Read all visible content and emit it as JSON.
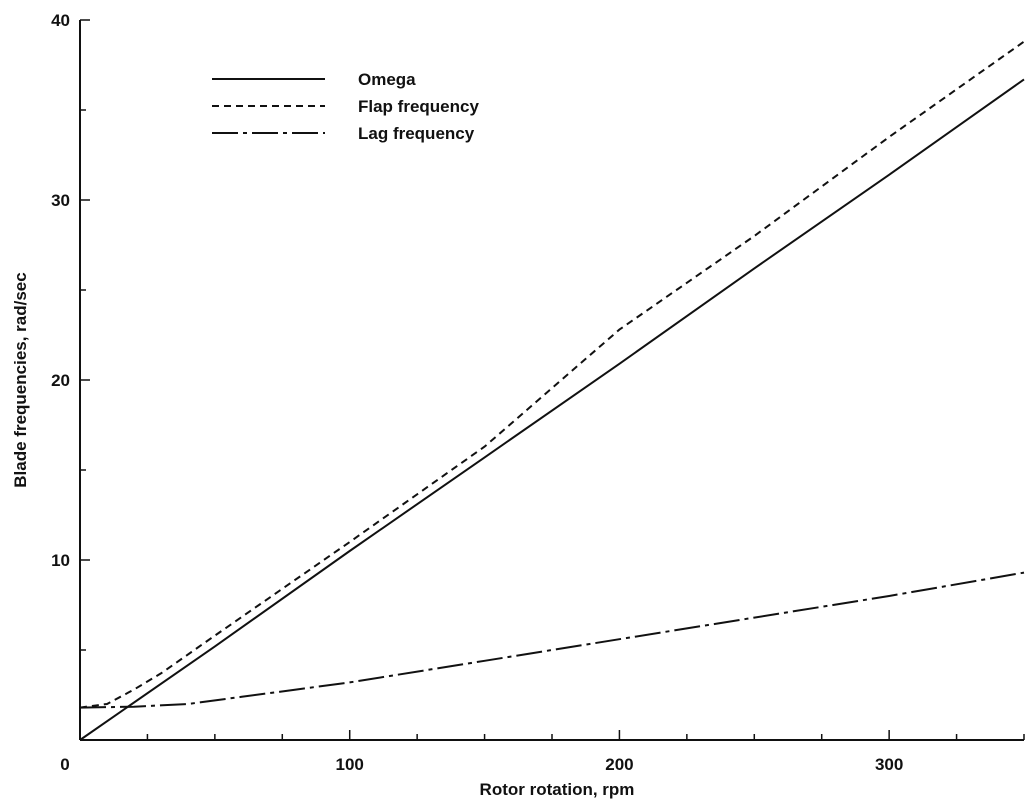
{
  "chart_data": {
    "type": "line",
    "xlabel": "Rotor rotation, rpm",
    "ylabel": "Blade frequencies, rad/sec",
    "xlim": [
      0,
      350
    ],
    "ylim": [
      0,
      40
    ],
    "xticks": [
      0,
      100,
      200,
      300
    ],
    "yticks": [
      10,
      20,
      30,
      40
    ],
    "grid": false,
    "legend_position": "top-left",
    "series": [
      {
        "name": "Omega",
        "style": "solid",
        "x": [
          0,
          50,
          100,
          150,
          200,
          250,
          300,
          350
        ],
        "y": [
          0,
          5.2,
          10.5,
          15.7,
          20.9,
          26.2,
          31.4,
          36.7
        ]
      },
      {
        "name": "Flap frequency",
        "style": "dashed",
        "x": [
          0,
          10,
          20,
          30,
          50,
          100,
          150,
          200,
          250,
          300,
          350
        ],
        "y": [
          1.8,
          2.0,
          2.8,
          3.7,
          5.8,
          11.0,
          16.3,
          22.8,
          28.0,
          33.5,
          38.8
        ]
      },
      {
        "name": "Lag frequency",
        "style": "dash-dot",
        "x": [
          0,
          20,
          40,
          60,
          80,
          100,
          150,
          200,
          250,
          300,
          350
        ],
        "y": [
          1.8,
          1.85,
          2.0,
          2.4,
          2.8,
          3.2,
          4.4,
          5.6,
          6.8,
          8.0,
          9.3
        ]
      }
    ]
  }
}
